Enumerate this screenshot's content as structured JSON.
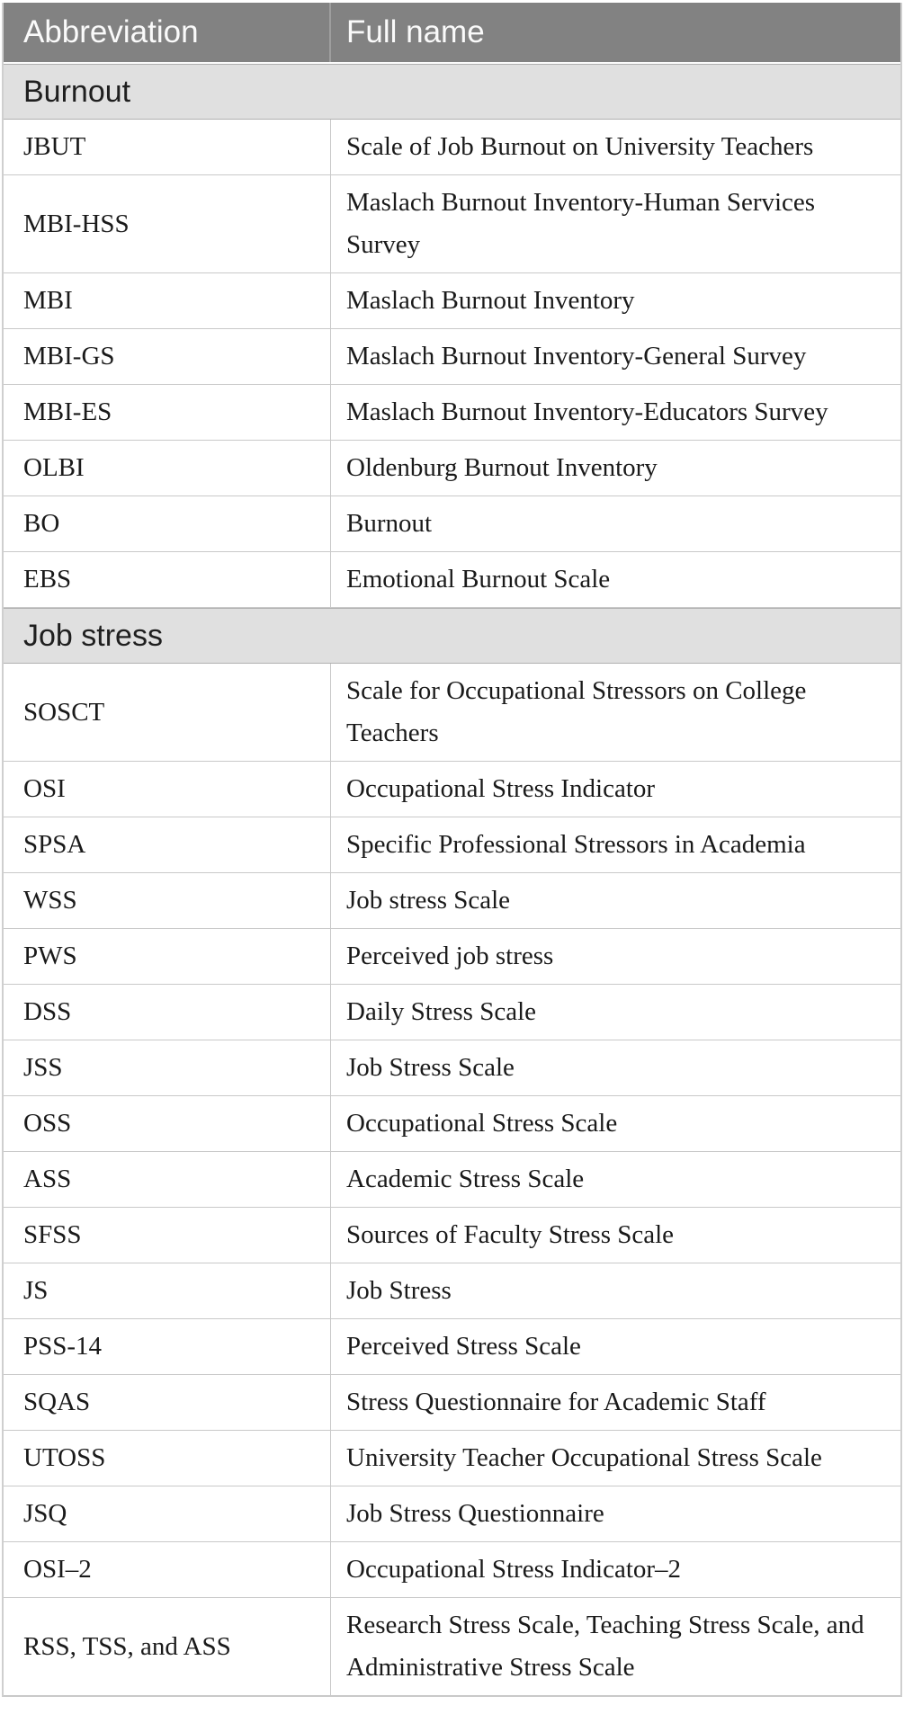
{
  "colors": {
    "header_bg": "#828282",
    "header_text": "#fafafa",
    "header_divider": "#9e9e9e",
    "section_bg": "#e0e0e0",
    "section_text": "#1f1f1f",
    "body_text": "#1a1a1a",
    "row_border": "#c9c9c9",
    "section_border": "#b0b0b0",
    "table_border": "#cfcfcf",
    "page_bg": "#ffffff"
  },
  "table": {
    "columns": [
      {
        "key": "abbreviation",
        "label": "Abbreviation"
      },
      {
        "key": "full_name",
        "label": "Full name"
      }
    ],
    "sections": [
      {
        "title": "Burnout",
        "rows": [
          {
            "abbreviation": "JBUT",
            "full_name": "Scale of Job Burnout on University Teachers"
          },
          {
            "abbreviation": "MBI-HSS",
            "full_name": "Maslach Burnout Inventory-Human Services Survey"
          },
          {
            "abbreviation": "MBI",
            "full_name": "Maslach Burnout Inventory"
          },
          {
            "abbreviation": "MBI-GS",
            "full_name": "Maslach Burnout Inventory-General Survey"
          },
          {
            "abbreviation": "MBI-ES",
            "full_name": "Maslach Burnout Inventory-Educators Survey"
          },
          {
            "abbreviation": "OLBI",
            "full_name": "Oldenburg Burnout Inventory"
          },
          {
            "abbreviation": "BO",
            "full_name": "Burnout"
          },
          {
            "abbreviation": "EBS",
            "full_name": "Emotional Burnout Scale"
          }
        ]
      },
      {
        "title": "Job stress",
        "rows": [
          {
            "abbreviation": "SOSCT",
            "full_name": "Scale for Occupational Stressors on College Teachers"
          },
          {
            "abbreviation": "OSI",
            "full_name": "Occupational Stress Indicator"
          },
          {
            "abbreviation": "SPSA",
            "full_name": "Specific Professional Stressors in Academia"
          },
          {
            "abbreviation": "WSS",
            "full_name": "Job stress Scale"
          },
          {
            "abbreviation": "PWS",
            "full_name": "Perceived job stress"
          },
          {
            "abbreviation": "DSS",
            "full_name": "Daily Stress Scale"
          },
          {
            "abbreviation": "JSS",
            "full_name": "Job Stress Scale"
          },
          {
            "abbreviation": "OSS",
            "full_name": "Occupational Stress Scale"
          },
          {
            "abbreviation": "ASS",
            "full_name": "Academic Stress Scale"
          },
          {
            "abbreviation": "SFSS",
            "full_name": "Sources of Faculty Stress Scale"
          },
          {
            "abbreviation": "JS",
            "full_name": "Job Stress"
          },
          {
            "abbreviation": "PSS-14",
            "full_name": "Perceived Stress Scale"
          },
          {
            "abbreviation": "SQAS",
            "full_name": "Stress Questionnaire for Academic Staff"
          },
          {
            "abbreviation": "UTOSS",
            "full_name": "University Teacher Occupational Stress Scale"
          },
          {
            "abbreviation": "JSQ",
            "full_name": "Job Stress Questionnaire"
          },
          {
            "abbreviation": "OSI–2",
            "full_name": "Occupational Stress Indicator–2"
          },
          {
            "abbreviation": "RSS, TSS, and ASS",
            "full_name": "Research Stress Scale, Teaching Stress Scale, and Administrative Stress Scale"
          }
        ]
      }
    ]
  }
}
